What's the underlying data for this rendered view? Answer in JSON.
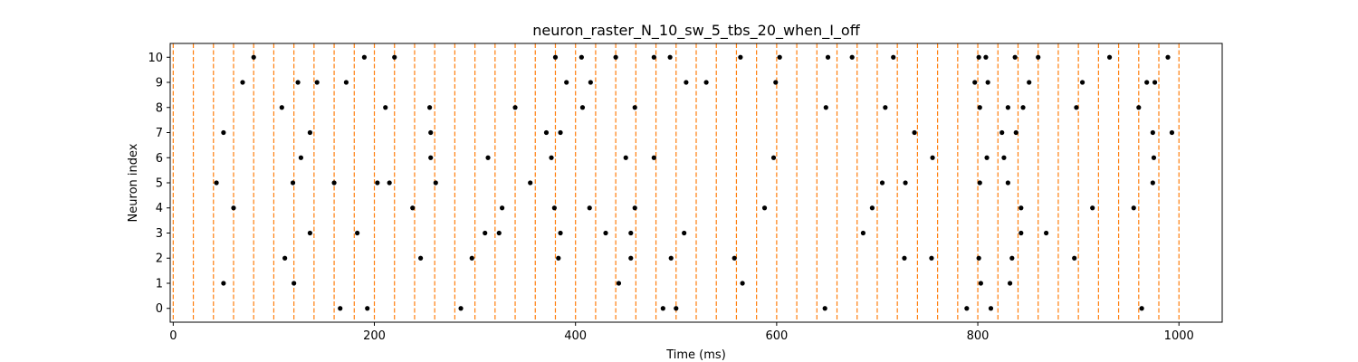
{
  "chart_data": {
    "type": "scatter",
    "title": "neuron_raster_N_10_sw_5_tbs_20_when_I_off",
    "xlabel": "Time (ms)",
    "ylabel": "Neuron index",
    "xlim": [
      -3,
      1043
    ],
    "ylim": [
      -0.55,
      10.55
    ],
    "xticks": [
      0,
      200,
      400,
      600,
      800,
      1000
    ],
    "yticks": [
      0,
      1,
      2,
      3,
      4,
      5,
      6,
      7,
      8,
      9,
      10
    ],
    "grid": false,
    "legend": "none",
    "marker_color": "#000000",
    "vline_color": "#ff7f0e",
    "vlines": [
      0,
      20,
      40,
      60,
      80,
      100,
      120,
      140,
      160,
      180,
      200,
      220,
      240,
      260,
      280,
      300,
      320,
      340,
      360,
      380,
      400,
      420,
      440,
      460,
      480,
      500,
      520,
      540,
      560,
      580,
      600,
      620,
      640,
      660,
      680,
      700,
      720,
      740,
      760,
      780,
      800,
      820,
      840,
      860,
      880,
      900,
      920,
      940,
      960,
      980,
      1000
    ],
    "series": [
      {
        "neuron": 0,
        "x": [
          166,
          193,
          286,
          487,
          500,
          648,
          789,
          813,
          963
        ]
      },
      {
        "neuron": 1,
        "x": [
          50,
          120,
          443,
          566,
          803,
          832
        ]
      },
      {
        "neuron": 2,
        "x": [
          111,
          246,
          297,
          383,
          455,
          495,
          558,
          727,
          754,
          801,
          834,
          896
        ]
      },
      {
        "neuron": 3,
        "x": [
          136,
          183,
          310,
          324,
          385,
          430,
          455,
          508,
          686,
          843,
          868
        ]
      },
      {
        "neuron": 4,
        "x": [
          60,
          238,
          327,
          379,
          414,
          459,
          588,
          695,
          843,
          914,
          955
        ]
      },
      {
        "neuron": 5,
        "x": [
          43,
          119,
          160,
          203,
          215,
          261,
          355,
          705,
          728,
          802,
          830,
          974
        ]
      },
      {
        "neuron": 6,
        "x": [
          127,
          256,
          313,
          376,
          450,
          478,
          597,
          755,
          809,
          826,
          975
        ]
      },
      {
        "neuron": 7,
        "x": [
          50,
          136,
          256,
          371,
          385,
          737,
          824,
          838,
          974,
          993
        ]
      },
      {
        "neuron": 8,
        "x": [
          108,
          211,
          255,
          340,
          407,
          459,
          649,
          708,
          802,
          830,
          845,
          898,
          960
        ]
      },
      {
        "neuron": 9,
        "x": [
          69,
          124,
          143,
          172,
          391,
          415,
          510,
          530,
          599,
          797,
          810,
          851,
          904,
          968,
          976
        ]
      },
      {
        "neuron": 10,
        "x": [
          80,
          190,
          220,
          380,
          406,
          440,
          478,
          494,
          564,
          603,
          651,
          675,
          716,
          801,
          808,
          837,
          860,
          931,
          989
        ]
      }
    ]
  }
}
